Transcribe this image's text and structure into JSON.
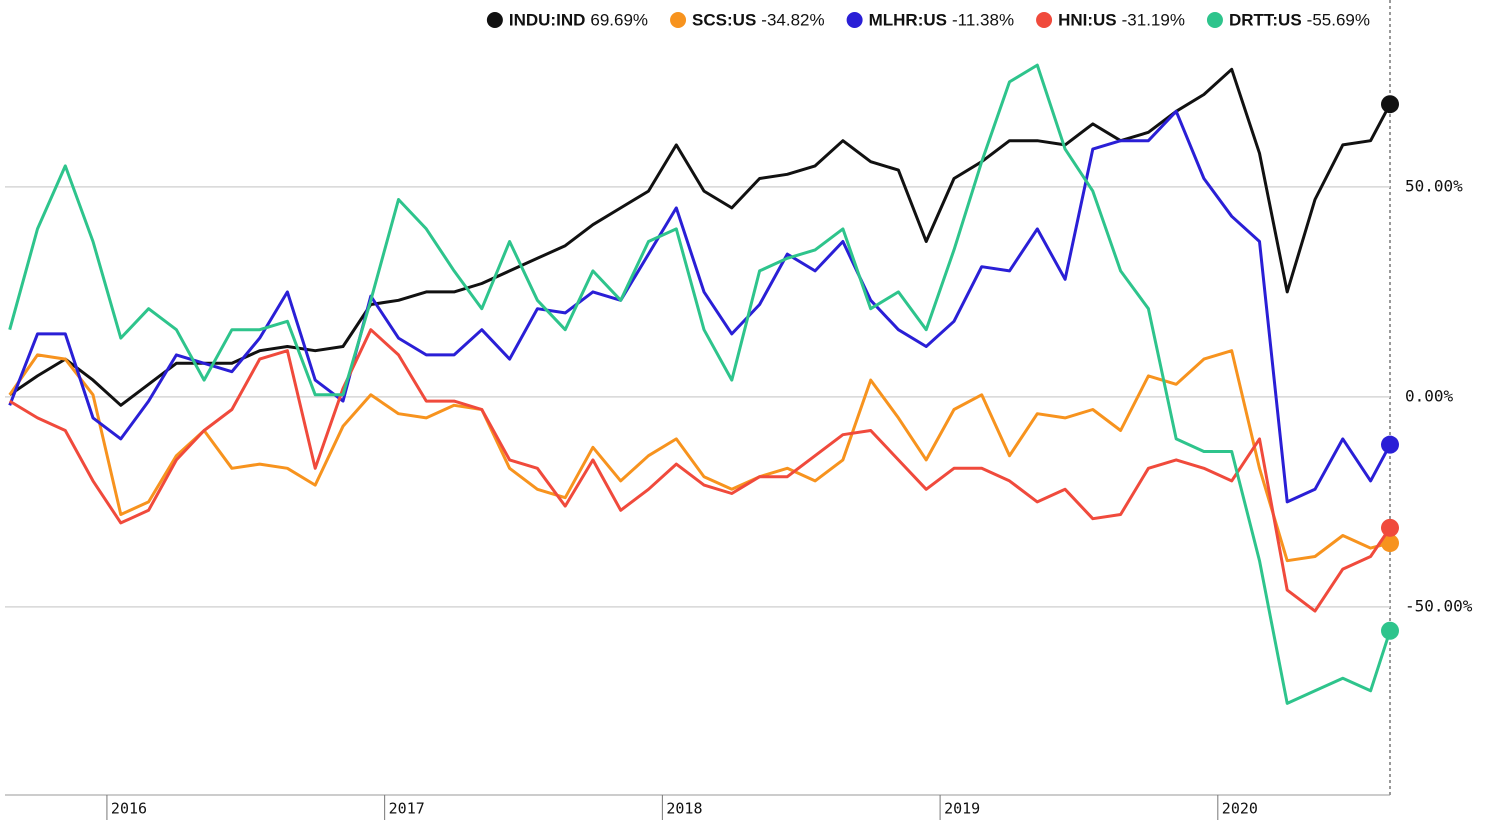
{
  "chart_data": {
    "type": "line",
    "x": [
      2015.65,
      2015.75,
      2015.85,
      2015.95,
      2016.05,
      2016.15,
      2016.25,
      2016.35,
      2016.45,
      2016.55,
      2016.65,
      2016.75,
      2016.85,
      2016.95,
      2017.05,
      2017.15,
      2017.25,
      2017.35,
      2017.45,
      2017.55,
      2017.65,
      2017.75,
      2017.85,
      2017.95,
      2018.05,
      2018.15,
      2018.25,
      2018.35,
      2018.45,
      2018.55,
      2018.65,
      2018.75,
      2018.85,
      2018.95,
      2019.05,
      2019.15,
      2019.25,
      2019.35,
      2019.45,
      2019.55,
      2019.65,
      2019.75,
      2019.85,
      2019.95,
      2020.05,
      2020.15,
      2020.25,
      2020.35,
      2020.45,
      2020.55,
      2020.62
    ],
    "series": [
      {
        "name": "INDU:IND",
        "legend_label": "69.69%",
        "color": "#111111",
        "values": [
          0.5,
          5,
          9,
          4,
          -2,
          3,
          8,
          8,
          8,
          11,
          12,
          11,
          12,
          22,
          23,
          25,
          25,
          27,
          30,
          33,
          36,
          41,
          45,
          49,
          60,
          49,
          45,
          52,
          53,
          55,
          61,
          56,
          54,
          37,
          52,
          56,
          61,
          61,
          60,
          65,
          61,
          63,
          68,
          72,
          78,
          58,
          25,
          47,
          60,
          61,
          69.69
        ]
      },
      {
        "name": "SCS:US",
        "legend_label": "-34.82%",
        "color": "#f7931e",
        "values": [
          0.5,
          10,
          9,
          0.5,
          -28,
          -25,
          -14,
          -8,
          -17,
          -16,
          -17,
          -21,
          -7,
          0.5,
          -4,
          -5,
          -2,
          -3,
          -17,
          -22,
          -24,
          -12,
          -20,
          -14,
          -10,
          -19,
          -22,
          -19,
          -17,
          -20,
          -15,
          4,
          -5,
          -15,
          -3,
          0.5,
          -14,
          -4,
          -5,
          -3,
          -8,
          5,
          3,
          9,
          11,
          -17,
          -39,
          -38,
          -33,
          -36,
          -34.82
        ]
      },
      {
        "name": "MLHR:US",
        "legend_label": "-11.38%",
        "color": "#2a1fd6",
        "values": [
          -2,
          15,
          15,
          -5,
          -10,
          -1,
          10,
          8,
          6,
          14,
          25,
          4,
          -1,
          24,
          14,
          10,
          10,
          16,
          9,
          21,
          20,
          25,
          23,
          34,
          45,
          25,
          15,
          22,
          34,
          30,
          37,
          23,
          16,
          12,
          18,
          31,
          30,
          40,
          28,
          59,
          61,
          61,
          68,
          52,
          43,
          37,
          -25,
          -22,
          -10,
          -20,
          -11.38
        ]
      },
      {
        "name": "HNI:US",
        "legend_label": "-31.19%",
        "color": "#f04a3c",
        "values": [
          -1,
          -5,
          -8,
          -20,
          -30,
          -27,
          -15,
          -8,
          -3,
          9,
          11,
          -17,
          2,
          16,
          10,
          -1,
          -1,
          -3,
          -15,
          -17,
          -26,
          -15,
          -27,
          -22,
          -16,
          -21,
          -23,
          -19,
          -19,
          -14,
          -9,
          -8,
          -15,
          -22,
          -17,
          -17,
          -20,
          -25,
          -22,
          -29,
          -28,
          -17,
          -15,
          -17,
          -20,
          -10,
          -46,
          -51,
          -41,
          -38,
          -31.19
        ]
      },
      {
        "name": "DRTT:US",
        "legend_label": "-55.69%",
        "color": "#2ec48c",
        "values": [
          16,
          40,
          55,
          37,
          14,
          21,
          16,
          4,
          16,
          16,
          18,
          0.5,
          0.5,
          23,
          47,
          40,
          30,
          21,
          37,
          23,
          16,
          30,
          23,
          37,
          40,
          16,
          4,
          30,
          33,
          35,
          40,
          21,
          25,
          16,
          35,
          56,
          75,
          79,
          59,
          49,
          30,
          21,
          -10,
          -13,
          -13,
          -39,
          -73,
          -70,
          -67,
          -70,
          -55.69
        ]
      }
    ],
    "xlim": [
      2015.633,
      2020.62
    ],
    "xticks": [
      2016,
      2017,
      2018,
      2019,
      2020
    ],
    "ylim": [
      -94.8,
      94.5
    ],
    "yticks": [
      {
        "value": 50,
        "label": "50.00%"
      },
      {
        "value": 0,
        "label": "0.00%"
      },
      {
        "value": -50,
        "label": "-50.00%"
      }
    ],
    "grid": true
  }
}
